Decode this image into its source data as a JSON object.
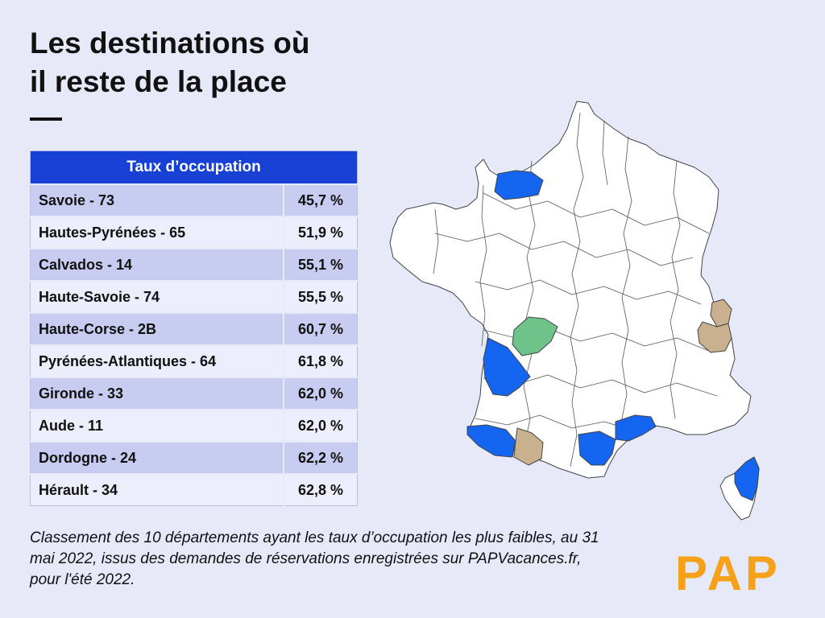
{
  "title_line1": "Les destinations où",
  "title_line2": "il reste de la place",
  "chart_data": {
    "type": "table",
    "header": "Taux d’occupation",
    "rows": [
      {
        "label": "Savoie - 73",
        "value": 45.7,
        "display": "45,7 %"
      },
      {
        "label": "Hautes-Pyrénées - 65",
        "value": 51.9,
        "display": "51,9 %"
      },
      {
        "label": "Calvados - 14",
        "value": 55.1,
        "display": "55,1 %"
      },
      {
        "label": "Haute-Savoie - 74",
        "value": 55.5,
        "display": "55,5 %"
      },
      {
        "label": "Haute-Corse - 2B",
        "value": 60.7,
        "display": "60,7 %"
      },
      {
        "label": "Pyrénées-Atlantiques - 64",
        "value": 61.8,
        "display": "61,8 %"
      },
      {
        "label": "Gironde - 33",
        "value": 62.0,
        "display": "62,0 %"
      },
      {
        "label": "Aude - 11",
        "value": 62.0,
        "display": "62,0 %"
      },
      {
        "label": "Dordogne - 24",
        "value": 62.2,
        "display": "62,2 %"
      },
      {
        "label": "Hérault - 34",
        "value": 62.8,
        "display": "62,8 %"
      }
    ]
  },
  "caption": "Classement des 10 départements ayant les taux d’occupation les plus faibles, au 31 mai 2022, issus des demandes de réservations enregistrées sur PAPVacances.fr, pour l'été 2022.",
  "logo": "PAP",
  "colors": {
    "background": "#e5e9f8",
    "header": "#1740d4",
    "highlight_blue": "#1466f0",
    "highlight_tan": "#c9b08e",
    "highlight_green": "#6dc38a",
    "logo": "#f5a21a"
  }
}
